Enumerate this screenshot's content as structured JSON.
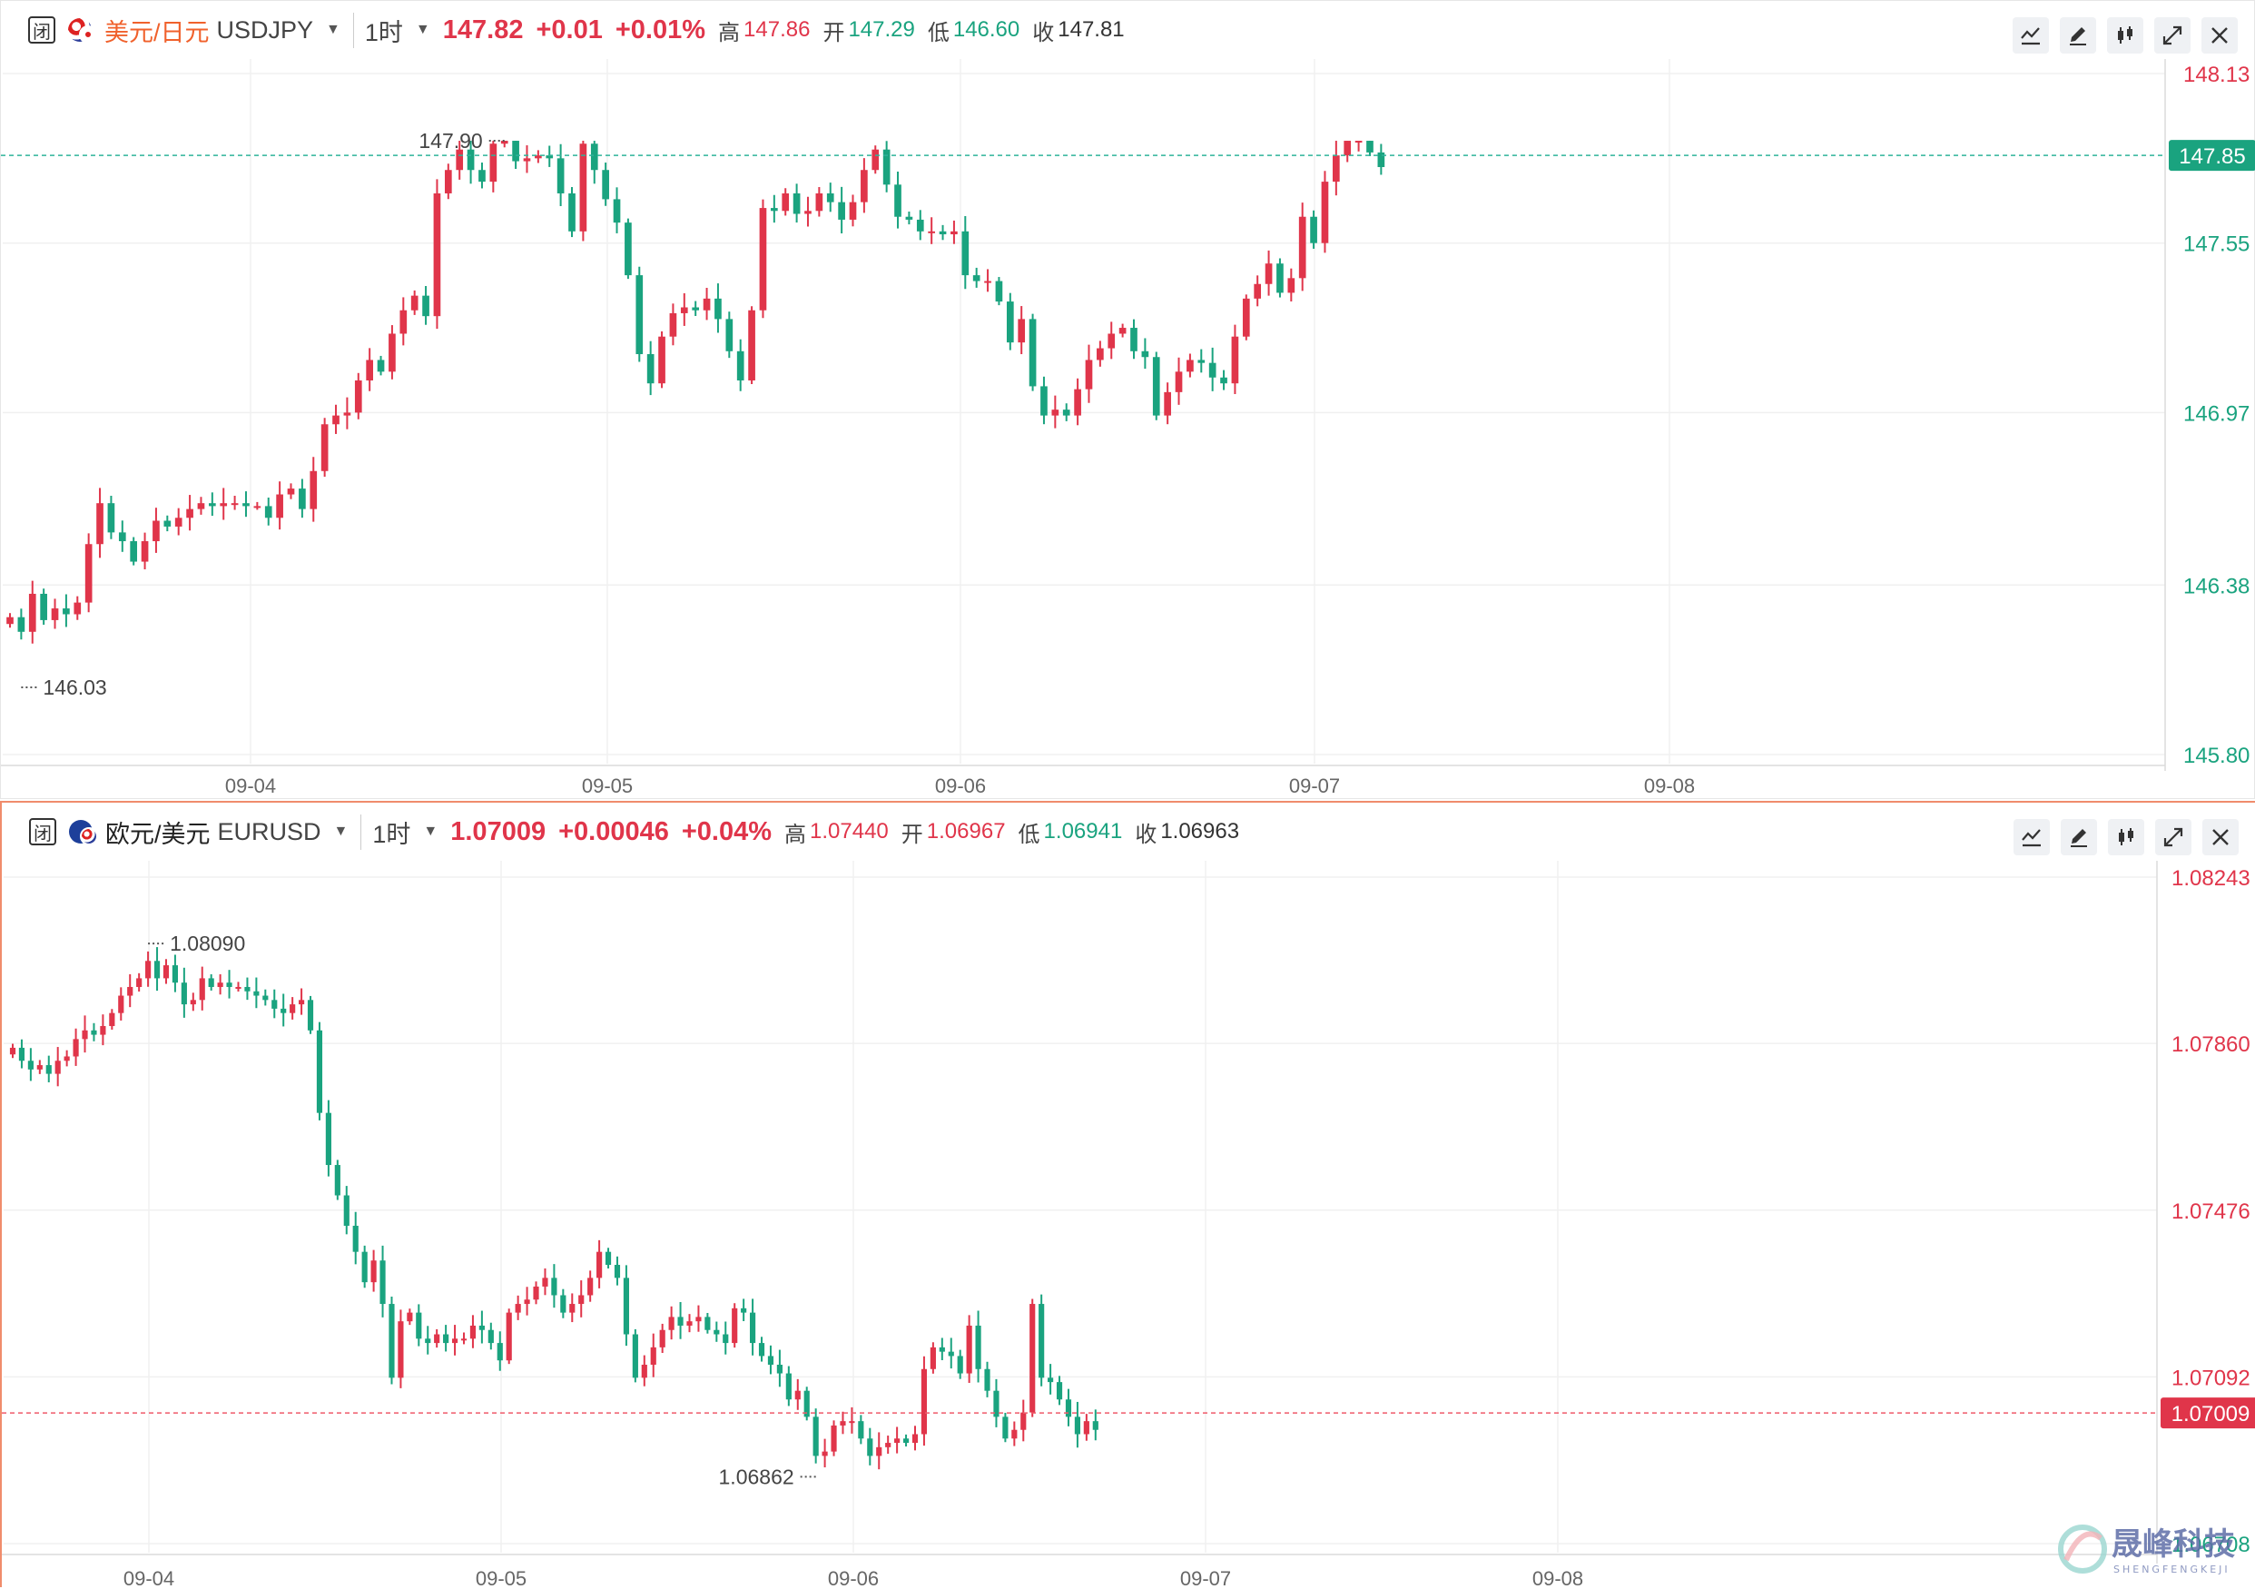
{
  "panels": [
    {
      "id": "top",
      "closed_badge": "闭",
      "symbol_name": "美元/日元",
      "symbol_code": "USDJPY",
      "timeframe": "1时",
      "last": "147.82",
      "change": "+0.01",
      "change_pct": "+0.01%",
      "high_label": "高",
      "high": "147.86",
      "open_label": "开",
      "open": "147.29",
      "low_label": "低",
      "low": "146.60",
      "close_label": "收",
      "close": "147.81",
      "colors": {
        "up": "#e0354a",
        "down": "#1aa37f",
        "price_line": "#2fb39a"
      }
    },
    {
      "id": "bot",
      "closed_badge": "闭",
      "symbol_name": "欧元/美元",
      "symbol_code": "EURUSD",
      "timeframe": "1时",
      "last": "1.07009",
      "change": "+0.00046",
      "change_pct": "+0.04%",
      "high_label": "高",
      "high": "1.07440",
      "open_label": "开",
      "open": "1.06967",
      "low_label": "低",
      "low": "1.06941",
      "close_label": "收",
      "close": "1.06963",
      "colors": {
        "up": "#e0354a",
        "down": "#1aa37f",
        "price_line": "#ef5a6a"
      }
    }
  ],
  "watermark": {
    "text": "晟峰科技",
    "sub": "SHENGFENGKEJI"
  },
  "chart_data": [
    {
      "type": "candlestick",
      "title": "美元/日元 USDJPY",
      "timeframe": "1时",
      "x_ticks": [
        "09-04",
        "09-05",
        "09-06",
        "09-07",
        "09-08"
      ],
      "y_ticks": [
        148.13,
        147.55,
        146.97,
        146.38,
        145.8
      ],
      "ylim": [
        145.8,
        148.13
      ],
      "current_price": 147.85,
      "annotations": {
        "high": 147.9,
        "low": 146.03
      },
      "grid": true,
      "closes": [
        146.27,
        146.22,
        146.35,
        146.26,
        146.3,
        146.28,
        146.32,
        146.52,
        146.66,
        146.56,
        146.53,
        146.46,
        146.53,
        146.6,
        146.58,
        146.61,
        146.64,
        146.66,
        146.65,
        146.66,
        146.66,
        146.65,
        146.65,
        146.61,
        146.69,
        146.71,
        146.64,
        146.77,
        146.93,
        146.96,
        146.97,
        147.08,
        147.15,
        147.11,
        147.24,
        147.32,
        147.37,
        147.3,
        147.72,
        147.8,
        147.87,
        147.8,
        147.76,
        147.89,
        147.9,
        147.83,
        147.84,
        147.85,
        147.84,
        147.72,
        147.59,
        147.89,
        147.8,
        147.7,
        147.62,
        147.44,
        147.17,
        147.07,
        147.23,
        147.31,
        147.33,
        147.32,
        147.36,
        147.29,
        147.18,
        147.08,
        147.32,
        147.67,
        147.66,
        147.72,
        147.65,
        147.66,
        147.72,
        147.69,
        147.63,
        147.69,
        147.8,
        147.87,
        147.75,
        147.64,
        147.63,
        147.59,
        147.59,
        147.58,
        147.59,
        147.44,
        147.42,
        147.42,
        147.35,
        147.21,
        147.29,
        147.06,
        146.96,
        146.98,
        146.96,
        147.05,
        147.15,
        147.19,
        147.24,
        147.26,
        147.18,
        147.16,
        146.96,
        147.04,
        147.11,
        147.15,
        147.14,
        147.09,
        147.07,
        147.23,
        147.36,
        147.41,
        147.48,
        147.38,
        147.43,
        147.64,
        147.55,
        147.76,
        147.85,
        147.9,
        147.9,
        147.86,
        147.81
      ]
    },
    {
      "type": "candlestick",
      "title": "欧元/美元 EURUSD",
      "timeframe": "1时",
      "x_ticks": [
        "09-04",
        "09-05",
        "09-06",
        "09-07",
        "09-08"
      ],
      "y_ticks": [
        1.08243,
        1.0786,
        1.07476,
        1.07092,
        1.06708
      ],
      "ylim": [
        1.06708,
        1.08243
      ],
      "current_price": 1.07009,
      "annotations": {
        "high": 1.0809,
        "low": 1.06862
      },
      "grid": true,
      "closes": [
        1.0785,
        1.0782,
        1.078,
        1.0781,
        1.0779,
        1.0782,
        1.0783,
        1.0787,
        1.0789,
        1.0788,
        1.079,
        1.0793,
        1.0797,
        1.0799,
        1.0801,
        1.0805,
        1.0801,
        1.0804,
        1.08,
        1.0795,
        1.0796,
        1.0801,
        1.0799,
        1.08,
        1.0799,
        1.0799,
        1.0798,
        1.0797,
        1.0796,
        1.0794,
        1.0793,
        1.0795,
        1.0796,
        1.0789,
        1.077,
        1.0758,
        1.0751,
        1.0744,
        1.0738,
        1.0731,
        1.0736,
        1.0726,
        1.0709,
        1.0722,
        1.0724,
        1.0718,
        1.0717,
        1.0719,
        1.0717,
        1.0718,
        1.0718,
        1.0721,
        1.072,
        1.0717,
        1.0713,
        1.0724,
        1.0726,
        1.0727,
        1.073,
        1.0732,
        1.0728,
        1.0724,
        1.0726,
        1.0728,
        1.0732,
        1.0738,
        1.0735,
        1.0732,
        1.0719,
        1.0709,
        1.0712,
        1.0716,
        1.072,
        1.0723,
        1.0721,
        1.0722,
        1.0723,
        1.072,
        1.0719,
        1.0717,
        1.0725,
        1.0724,
        1.0717,
        1.0714,
        1.0712,
        1.071,
        1.0704,
        1.0706,
        1.07,
        1.0691,
        1.0692,
        1.0698,
        1.0699,
        1.0699,
        1.0695,
        1.0691,
        1.0693,
        1.0694,
        1.0695,
        1.0694,
        1.0696,
        1.0711,
        1.0716,
        1.0715,
        1.0714,
        1.071,
        1.0721,
        1.0711,
        1.0706,
        1.07,
        1.0695,
        1.0697,
        1.0701,
        1.0726,
        1.0709,
        1.0708,
        1.0704,
        1.07,
        1.0696,
        1.0699,
        1.0697
      ]
    }
  ]
}
